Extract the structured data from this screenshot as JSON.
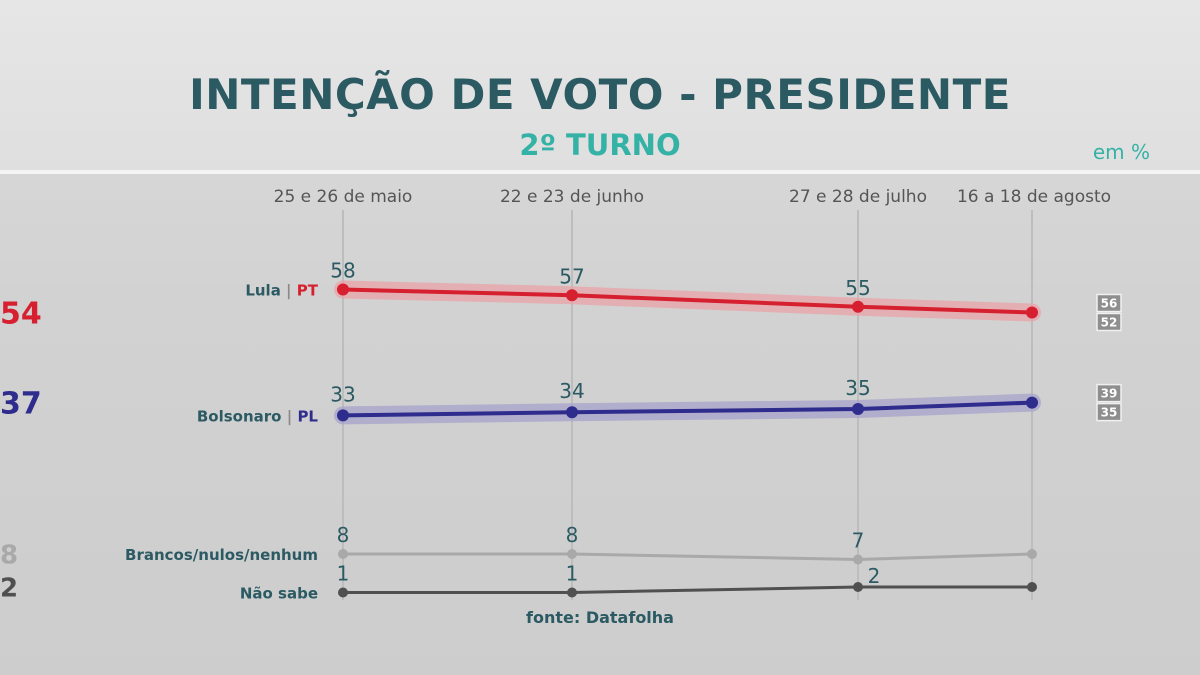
{
  "title": "INTENÇÃO DE VOTO - PRESIDENTE",
  "subtitle": "2º TURNO",
  "unit": "em %",
  "source": "fonte: Datafolha",
  "chart_data": {
    "type": "line",
    "x": [
      "25 e 26 de maio",
      "22 e 23 de junho",
      "27 e 28 de julho",
      "16 a 18 de agosto"
    ],
    "ylim": [
      0,
      60
    ],
    "grid": false,
    "series": [
      {
        "name": "Lula",
        "party": "PT",
        "values": [
          58,
          57,
          55,
          54
        ],
        "color": "#d6202f",
        "band_color": "#e9a3a8",
        "final_label": "54",
        "final_range": [
          "56",
          "52"
        ]
      },
      {
        "name": "Bolsonaro",
        "party": "PL",
        "values": [
          33,
          34,
          35,
          37
        ],
        "color": "#2e2c8c",
        "band_color": "#a6a3c9",
        "final_label": "37",
        "final_range": [
          "39",
          "35"
        ]
      },
      {
        "name": "Brancos/nulos/nenhum",
        "values": [
          8,
          8,
          7,
          8
        ],
        "color": "#a9a9a9",
        "final_label": "8"
      },
      {
        "name": "Não sabe",
        "values": [
          1,
          1,
          2,
          2
        ],
        "color": "#505050",
        "final_label": "2"
      }
    ]
  },
  "colors": {
    "title": "#2b5a63",
    "accent": "#35b2a6",
    "point_label": "#2b5a63"
  }
}
